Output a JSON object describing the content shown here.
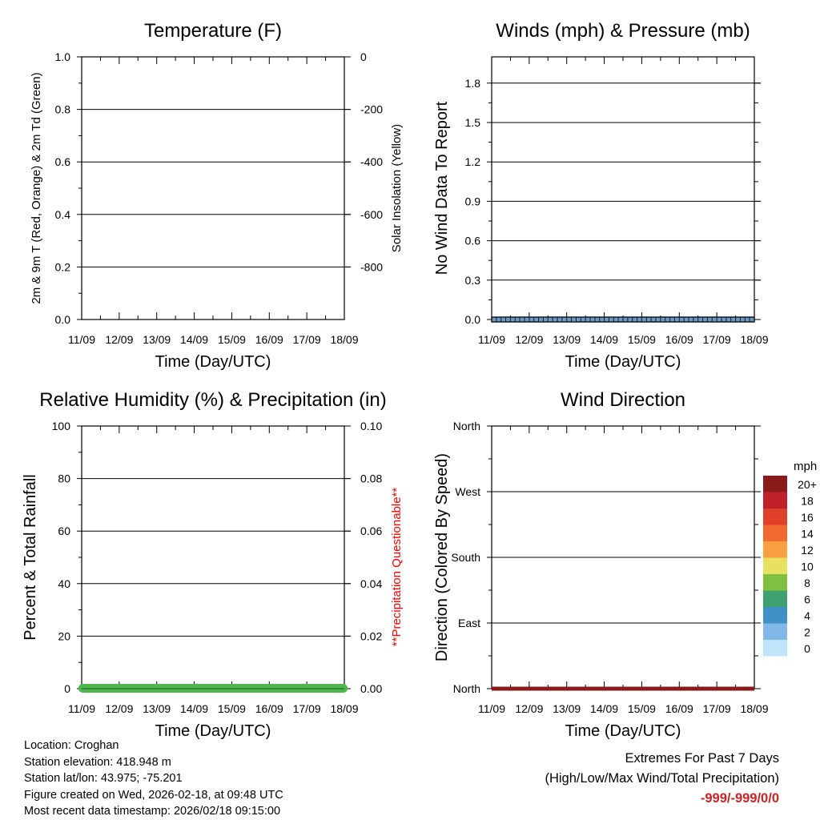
{
  "colors": {
    "temp_red": "#e03020",
    "dewpoint_green": "#33aa33",
    "precip_green": "#4cb84c",
    "wind_line": "#1a1a1a",
    "wind_fill": "#6699cc",
    "dir_line": "#8b1a1a",
    "questionable": "#ff0000",
    "extremes_value": "#cc2222"
  },
  "chart_data": [
    {
      "id": "temperature",
      "type": "line",
      "title": "Temperature (F)",
      "xlabel": "Time (Day/UTC)",
      "ylabel": "2m & 9m T (Red, Orange) & 2m Td (Green)",
      "y2label": "Solar Insolation (Yellow)",
      "x_ticks": [
        "11/09",
        "12/09",
        "13/09",
        "14/09",
        "15/09",
        "16/09",
        "17/09",
        "18/09"
      ],
      "ylim": [
        0,
        1
      ],
      "y_ticks": [
        "0.0",
        "0.2",
        "0.4",
        "0.6",
        "0.8",
        "1.0"
      ],
      "y2lim": [
        -1000,
        0
      ],
      "y2_ticks": [
        "0",
        "-200",
        "-400",
        "-600",
        "-800"
      ],
      "grid": true,
      "series": []
    },
    {
      "id": "winds",
      "type": "line",
      "title": "Winds (mph) & Pressure (mb)",
      "xlabel": "Time (Day/UTC)",
      "ylabel": "No Wind Data To Report",
      "x_ticks": [
        "11/09",
        "12/09",
        "13/09",
        "14/09",
        "15/09",
        "16/09",
        "17/09",
        "18/09"
      ],
      "ylim": [
        0,
        2.0
      ],
      "y_ticks": [
        "0.0",
        "0.3",
        "0.6",
        "0.9",
        "1.2",
        "1.5",
        "1.8"
      ],
      "grid": true,
      "series": [
        {
          "name": "Wind speed",
          "values": [
            0,
            0,
            0,
            0,
            0,
            0,
            0,
            0
          ]
        }
      ]
    },
    {
      "id": "humidity",
      "type": "line",
      "title": "Relative Humidity (%) & Precipitation (in)",
      "xlabel": "Time (Day/UTC)",
      "ylabel": "Percent & Total Rainfall",
      "y2label": "**Precipitation Questionable**",
      "x_ticks": [
        "11/09",
        "12/09",
        "13/09",
        "14/09",
        "15/09",
        "16/09",
        "17/09",
        "18/09"
      ],
      "ylim": [
        0,
        100
      ],
      "y_ticks": [
        "0",
        "20",
        "40",
        "60",
        "80",
        "100"
      ],
      "y2lim": [
        0,
        0.1
      ],
      "y2_ticks": [
        "0.00",
        "0.02",
        "0.04",
        "0.06",
        "0.08",
        "0.10"
      ],
      "grid": true,
      "series": [
        {
          "name": "Total Precipitation",
          "values": [
            0,
            0,
            0,
            0,
            0,
            0,
            0,
            0
          ]
        }
      ]
    },
    {
      "id": "direction",
      "type": "scatter",
      "title": "Wind Direction",
      "xlabel": "Time (Day/UTC)",
      "ylabel": "Direction (Colored By Speed)",
      "x_ticks": [
        "11/09",
        "12/09",
        "13/09",
        "14/09",
        "15/09",
        "16/09",
        "17/09",
        "18/09"
      ],
      "ylim": [
        0,
        360
      ],
      "y_ticks": [
        "North",
        "East",
        "South",
        "West",
        "North"
      ],
      "grid": true,
      "series": [
        {
          "name": "Direction",
          "values": [
            0,
            0,
            0,
            0,
            0,
            0,
            0,
            0
          ]
        }
      ],
      "colorbar": {
        "title": "mph",
        "labels": [
          "20+",
          "18",
          "16",
          "14",
          "12",
          "10",
          "8",
          "6",
          "4",
          "2",
          "0"
        ],
        "colors": [
          "#8b1a1a",
          "#c0202a",
          "#e0402a",
          "#f06a30",
          "#f8a040",
          "#e8e060",
          "#80c040",
          "#40a070",
          "#4090c8",
          "#80b8e8",
          "#c0e4f8"
        ]
      }
    }
  ],
  "info": {
    "location": "Location: Croghan",
    "elevation": "Station elevation: 418.948 m",
    "latlon": "Station lat/lon: 43.975; -75.201",
    "created": "Figure created on Wed, 2026-02-18, at 09:48 UTC",
    "recent": "Most recent data timestamp: 2026/02/18 09:15:00"
  },
  "extremes": {
    "title": "Extremes For Past 7 Days",
    "subtitle": "(High/Low/Max Wind/Total Precipitation)",
    "value": "-999/-999/0/0"
  }
}
